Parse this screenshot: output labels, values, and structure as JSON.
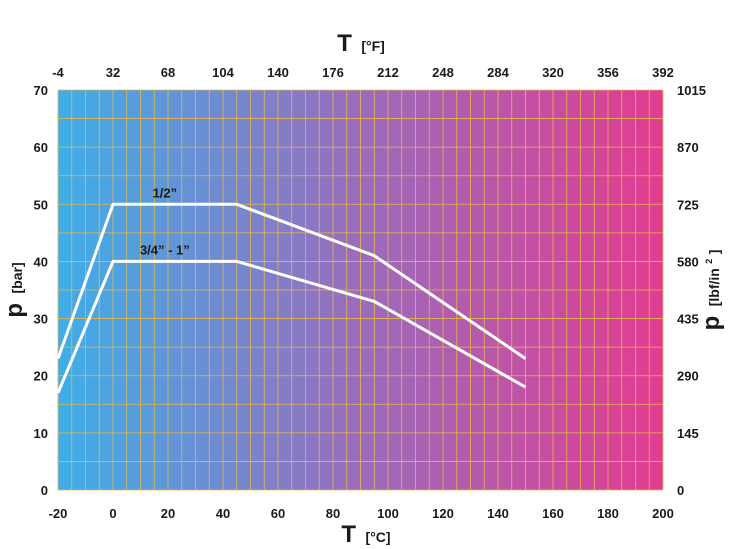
{
  "chart_data": {
    "type": "line",
    "x_bottom": {
      "symbol": "T",
      "unit": "[°C]",
      "range": [
        -20,
        200
      ],
      "ticks": [
        "-20",
        "0",
        "20",
        "40",
        "60",
        "80",
        "100",
        "120",
        "140",
        "160",
        "180",
        "200"
      ]
    },
    "x_top": {
      "symbol": "T",
      "unit": "[°F]",
      "ticks": [
        "-4",
        "32",
        "68",
        "104",
        "140",
        "176",
        "212",
        "248",
        "284",
        "320",
        "356",
        "392"
      ]
    },
    "y_left": {
      "symbol": "p",
      "unit": "[bar]",
      "range": [
        0,
        70
      ],
      "ticks": [
        "0",
        "10",
        "20",
        "30",
        "40",
        "50",
        "60",
        "70"
      ]
    },
    "y_right": {
      "symbol": "p",
      "unit": "[lbf/in",
      "unit_sup": "2",
      "unit_close": "]",
      "ticks": [
        "0",
        "145",
        "290",
        "435",
        "580",
        "725",
        "870",
        "1015"
      ]
    },
    "grid": true,
    "colors": {
      "gradient_start": "#3eaee8",
      "gradient_mid": "#9a6cbc",
      "gradient_end": "#e23c90",
      "grid": "#e6b84a",
      "series_line": "#ffffff"
    },
    "series": [
      {
        "name": "1/2”",
        "points": [
          [
            -20,
            23
          ],
          [
            0,
            50
          ],
          [
            45,
            50
          ],
          [
            95,
            41
          ],
          [
            150,
            23
          ]
        ]
      },
      {
        "name": "3/4” - 1”",
        "points": [
          [
            -20,
            17
          ],
          [
            0,
            40
          ],
          [
            45,
            40
          ],
          [
            95,
            33
          ],
          [
            150,
            18
          ]
        ]
      }
    ]
  }
}
